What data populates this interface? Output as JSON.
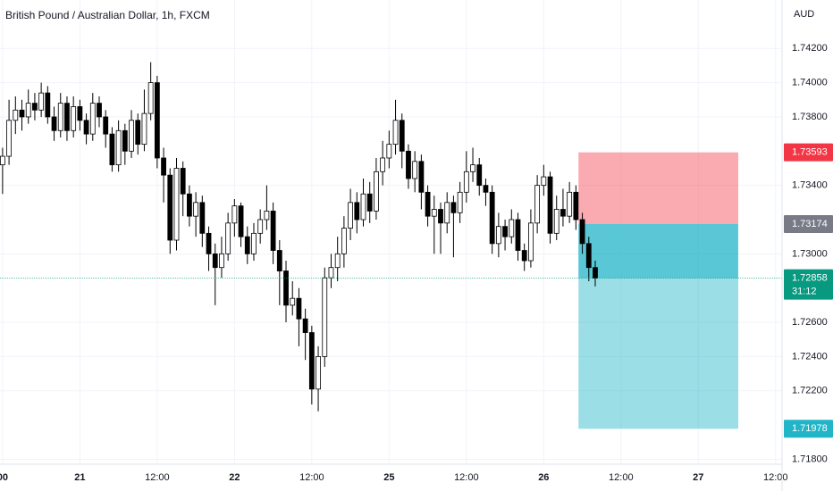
{
  "chart_data": {
    "type": "candlestick",
    "title": "British Pound / Australian Dollar, 1h, FXCM",
    "y_label": "AUD",
    "countdown": "31:12",
    "xlim": [
      -0.4,
      121
    ],
    "xticks": [
      {
        "value": 0,
        "label": "00"
      },
      {
        "value": 12,
        "label": "21"
      },
      {
        "value": 24,
        "label": "12:00"
      },
      {
        "value": 36,
        "label": "22"
      },
      {
        "value": 48,
        "label": "12:00"
      },
      {
        "value": 60,
        "label": "25"
      },
      {
        "value": 72,
        "label": "12:00"
      },
      {
        "value": 84,
        "label": "26"
      },
      {
        "value": 96,
        "label": "12:00"
      },
      {
        "value": 108,
        "label": "27"
      },
      {
        "value": 120,
        "label": "12:00"
      }
    ],
    "ylim": [
      1.71771,
      1.74483
    ],
    "yticks": [
      {
        "value": 1.742,
        "label": "1.74200"
      },
      {
        "value": 1.74,
        "label": "1.74000"
      },
      {
        "value": 1.738,
        "label": "1.73800"
      },
      {
        "value": 1.734,
        "label": "1.73400"
      },
      {
        "value": 1.73,
        "label": "1.73000"
      },
      {
        "value": 1.726,
        "label": "1.72600"
      },
      {
        "value": 1.724,
        "label": "1.72400"
      },
      {
        "value": 1.722,
        "label": "1.72200"
      },
      {
        "value": 1.718,
        "label": "1.71800"
      }
    ],
    "grid": true,
    "up_color": "#ffffff",
    "down_color": "#000000",
    "border_color": "#000000",
    "open": [
      1.7352,
      1.7357,
      1.7378,
      1.7384,
      1.738,
      1.7388,
      1.7384,
      1.7394,
      1.738,
      1.7372,
      1.7388,
      1.7372,
      1.7386,
      1.7378,
      1.737,
      1.7388,
      1.738,
      1.737,
      1.7352,
      1.7372,
      1.736,
      1.7378,
      1.7364,
      1.7382,
      1.74,
      1.7356,
      1.7346,
      1.7308,
      1.735,
      1.7335,
      1.7322,
      1.733,
      1.7312,
      1.73,
      1.7292,
      1.73,
      1.7318,
      1.7328,
      1.731,
      1.73,
      1.7312,
      1.732,
      1.7325,
      1.7302,
      1.729,
      1.727,
      1.7274,
      1.7262,
      1.7254,
      1.7221,
      1.724,
      1.7286,
      1.7292,
      1.73,
      1.7315,
      1.733,
      1.732,
      1.7335,
      1.7325,
      1.7348,
      1.7356,
      1.7364,
      1.7378,
      1.736,
      1.7344,
      1.7354,
      1.7336,
      1.7322,
      1.7326,
      1.7318,
      1.733,
      1.7324,
      1.7336,
      1.7348,
      1.7352,
      1.734,
      1.7336,
      1.7306,
      1.7316,
      1.731,
      1.732,
      1.7302,
      1.7296,
      1.7318,
      1.734,
      1.7345,
      1.7312,
      1.7326,
      1.7322,
      1.7336,
      1.732,
      1.7306,
      1.7292
    ],
    "high": [
      1.7362,
      1.739,
      1.7392,
      1.739,
      1.7396,
      1.7394,
      1.74,
      1.7398,
      1.7386,
      1.7394,
      1.7392,
      1.7392,
      1.739,
      1.7382,
      1.7394,
      1.7392,
      1.7384,
      1.7374,
      1.7378,
      1.7376,
      1.7384,
      1.7382,
      1.7396,
      1.7412,
      1.7404,
      1.7362,
      1.735,
      1.7356,
      1.7354,
      1.734,
      1.7336,
      1.7334,
      1.7316,
      1.7306,
      1.731,
      1.7324,
      1.7332,
      1.733,
      1.7316,
      1.7318,
      1.7326,
      1.734,
      1.733,
      1.7308,
      1.7296,
      1.7284,
      1.728,
      1.7268,
      1.7258,
      1.7246,
      1.7292,
      1.73,
      1.731,
      1.7322,
      1.7338,
      1.7336,
      1.7344,
      1.7342,
      1.7356,
      1.7366,
      1.7372,
      1.739,
      1.7382,
      1.7364,
      1.736,
      1.7358,
      1.734,
      1.7334,
      1.733,
      1.7336,
      1.7334,
      1.7342,
      1.736,
      1.7362,
      1.7356,
      1.7344,
      1.734,
      1.7324,
      1.732,
      1.7326,
      1.7324,
      1.7306,
      1.7326,
      1.7346,
      1.7352,
      1.7348,
      1.7334,
      1.7338,
      1.7342,
      1.734,
      1.7324,
      1.731,
      1.7296
    ],
    "low": [
      1.7335,
      1.7352,
      1.737,
      1.7372,
      1.7376,
      1.7378,
      1.738,
      1.7376,
      1.7366,
      1.7368,
      1.7366,
      1.7368,
      1.7372,
      1.7364,
      1.7366,
      1.7374,
      1.7362,
      1.7348,
      1.7348,
      1.7352,
      1.7356,
      1.7358,
      1.736,
      1.7378,
      1.735,
      1.733,
      1.73,
      1.7302,
      1.7322,
      1.7316,
      1.731,
      1.7304,
      1.729,
      1.727,
      1.7286,
      1.7296,
      1.731,
      1.7304,
      1.7294,
      1.7296,
      1.7306,
      1.7314,
      1.7294,
      1.727,
      1.726,
      1.7264,
      1.7246,
      1.7238,
      1.7212,
      1.7208,
      1.7234,
      1.728,
      1.7284,
      1.7292,
      1.7308,
      1.7312,
      1.7316,
      1.7318,
      1.732,
      1.734,
      1.735,
      1.7358,
      1.735,
      1.7338,
      1.7336,
      1.7326,
      1.7316,
      1.73,
      1.73,
      1.7312,
      1.7298,
      1.7318,
      1.733,
      1.7342,
      1.7334,
      1.7328,
      1.73,
      1.7298,
      1.7302,
      1.7306,
      1.7296,
      1.729,
      1.7292,
      1.7312,
      1.7334,
      1.7306,
      1.7308,
      1.7316,
      1.7318,
      1.7314,
      1.73,
      1.7284,
      1.7281
    ],
    "close": [
      1.7357,
      1.7378,
      1.7384,
      1.738,
      1.7388,
      1.7384,
      1.7394,
      1.738,
      1.7372,
      1.7388,
      1.7372,
      1.7386,
      1.7378,
      1.737,
      1.7388,
      1.738,
      1.737,
      1.7352,
      1.7372,
      1.736,
      1.7378,
      1.7364,
      1.7382,
      1.74,
      1.7356,
      1.7346,
      1.7308,
      1.735,
      1.7335,
      1.7322,
      1.733,
      1.7312,
      1.73,
      1.7292,
      1.73,
      1.7318,
      1.7328,
      1.731,
      1.73,
      1.7312,
      1.732,
      1.7325,
      1.7302,
      1.729,
      1.727,
      1.7274,
      1.7262,
      1.7254,
      1.7221,
      1.724,
      1.7286,
      1.7292,
      1.73,
      1.7315,
      1.733,
      1.732,
      1.7335,
      1.7325,
      1.7348,
      1.7356,
      1.7364,
      1.7378,
      1.736,
      1.7344,
      1.7354,
      1.7336,
      1.7322,
      1.7326,
      1.7318,
      1.733,
      1.7324,
      1.7336,
      1.7348,
      1.7352,
      1.734,
      1.7336,
      1.7306,
      1.7316,
      1.731,
      1.732,
      1.7302,
      1.7296,
      1.7318,
      1.734,
      1.7345,
      1.7312,
      1.7326,
      1.7322,
      1.7336,
      1.732,
      1.7306,
      1.7292,
      1.72858
    ],
    "last_price_color": "#089981",
    "position": {
      "entry": 1.73174,
      "stop": 1.73593,
      "target": 1.71978,
      "start": 89.4,
      "end": 114.2,
      "entry_color": "#787b86",
      "stop_color": "#f23645",
      "target_color": "#22b5c8",
      "stop_fill": "rgba(242,54,69,0.42)",
      "target_fill": "rgba(34,181,200,0.45)",
      "profit_fill": "rgba(34,181,200,0.55)"
    }
  }
}
